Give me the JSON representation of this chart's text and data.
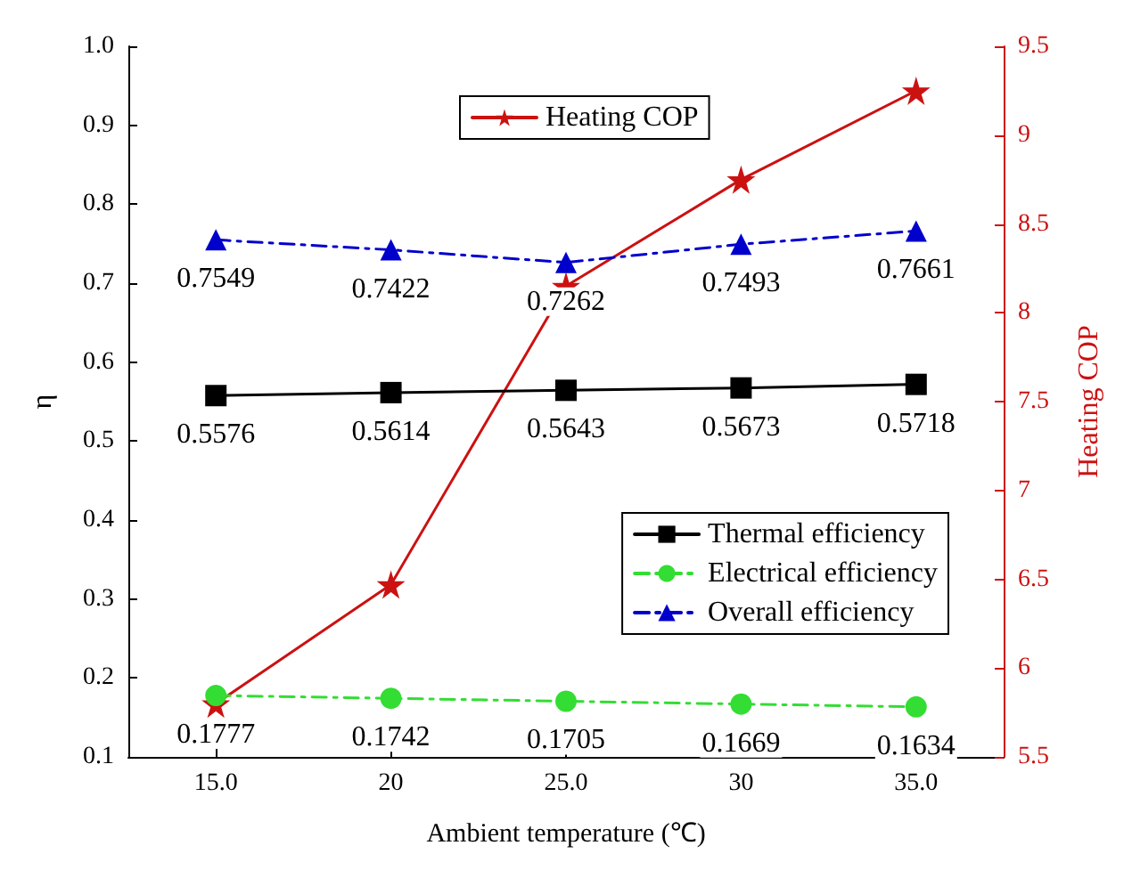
{
  "chart_data": {
    "type": "line",
    "xlabel": "Ambient temperature (℃)",
    "ylabel": "η",
    "y2label": "Heating COP",
    "x": [
      15,
      20,
      25,
      30,
      35
    ],
    "xlim": [
      12.5,
      37.5
    ],
    "xticks": [
      {
        "value": 15,
        "label": "15.0"
      },
      20,
      {
        "value": 25,
        "label": "25.0"
      },
      30,
      {
        "value": 35,
        "label": "35.0"
      }
    ],
    "ylim": [
      0.1,
      1.0
    ],
    "yticks": [
      0.1,
      0.2,
      0.3,
      0.4,
      0.5,
      0.6,
      0.7,
      0.8,
      0.9,
      {
        "value": 1.0,
        "label": "1.0"
      }
    ],
    "y2lim": [
      5.5,
      9.5
    ],
    "y2ticks": [
      5.5,
      6,
      6.5,
      7,
      7.5,
      8,
      8.5,
      9,
      9.5
    ],
    "series": [
      {
        "name": "Thermal efficiency",
        "color": "#000000",
        "marker": "square",
        "line_style": "solid",
        "values": [
          0.5576,
          0.5614,
          0.5643,
          0.5673,
          0.5718
        ],
        "data_labels": true
      },
      {
        "name": "Electrical efficiency",
        "color": "#33dd33",
        "marker": "circle",
        "line_style": "dashed",
        "values": [
          0.1777,
          0.1742,
          0.1705,
          0.1669,
          0.1634
        ],
        "data_labels": true
      },
      {
        "name": "Overall efficiency",
        "color": "#0000cc",
        "marker": "triangle",
        "line_style": "dashed",
        "values": [
          0.7549,
          0.7422,
          0.7262,
          0.7493,
          0.7661
        ],
        "data_labels": true
      },
      {
        "name": "Heating COP",
        "color": "#cc1111",
        "marker": "star",
        "line_style": "solid",
        "axis": "y2",
        "values": [
          5.8,
          6.47,
          8.15,
          8.75,
          9.25
        ]
      }
    ],
    "legend": "right",
    "grid": false
  }
}
